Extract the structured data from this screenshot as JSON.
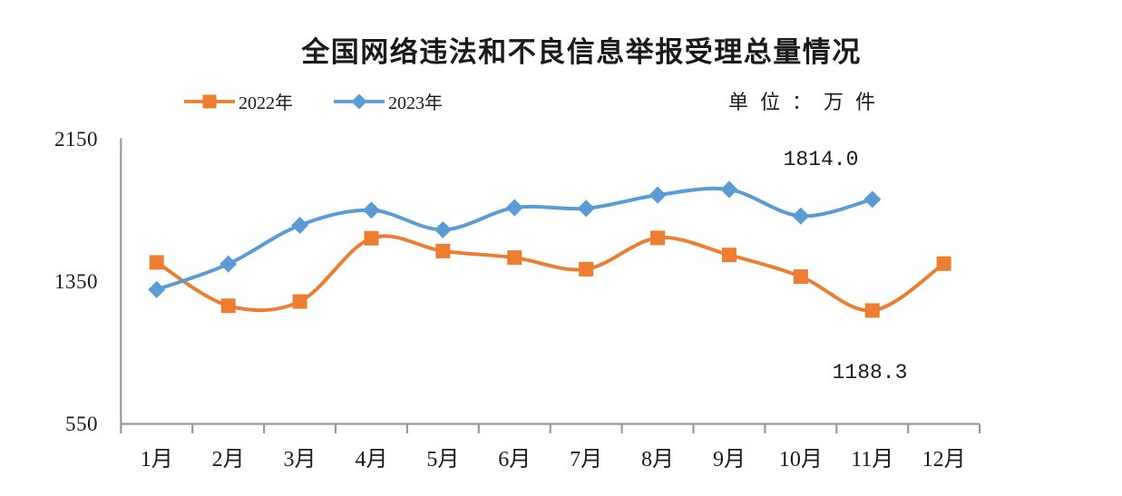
{
  "chart": {
    "title": "全国网络违法和不良信息举报受理总量情况",
    "unit_label": "单位：万件",
    "colors": {
      "series_2022": "#ED7D31",
      "series_2023": "#5B9BD5",
      "axis": "#999999",
      "text": "#1a1a1a"
    }
  },
  "chart_data": {
    "type": "line",
    "title": "全国网络违法和不良信息举报受理总量情况",
    "unit": "万件",
    "categories": [
      "1月",
      "2月",
      "3月",
      "4月",
      "5月",
      "6月",
      "7月",
      "8月",
      "9月",
      "10月",
      "11月",
      "12月"
    ],
    "series": [
      {
        "name": "2022年",
        "marker": "square",
        "color": "#ED7D31",
        "values": [
          1459,
          1215,
          1239,
          1595,
          1523,
          1486,
          1421,
          1597,
          1501,
          1379,
          1188.3,
          1452
        ]
      },
      {
        "name": "2023年",
        "marker": "diamond",
        "color": "#5B9BD5",
        "values": [
          1306,
          1450,
          1668,
          1753,
          1643,
          1767,
          1763,
          1838,
          1869,
          1720,
          1814.0
        ]
      }
    ],
    "ylim": [
      550,
      2150
    ],
    "yticks": [
      2150,
      1350,
      550
    ],
    "smoothed": true,
    "grid": false,
    "legend_position": "top",
    "annotations": [
      {
        "text": "1814.0",
        "series": "2023年",
        "category": "11月"
      },
      {
        "text": "1188.3",
        "series": "2022年",
        "category": "11月"
      }
    ]
  }
}
